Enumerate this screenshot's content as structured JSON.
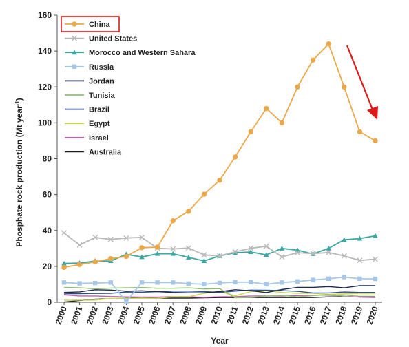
{
  "chart_data": {
    "type": "line",
    "title": "",
    "xlabel": "Year",
    "ylabel": "Phosphate rock production (Mt year",
    "ylabel_sup": "-1",
    "ylabel_close": ")",
    "ylim": [
      0,
      160
    ],
    "yticks": [
      0,
      20,
      40,
      60,
      80,
      100,
      120,
      140,
      160
    ],
    "x": [
      2000,
      2001,
      2002,
      2003,
      2004,
      2005,
      2006,
      2007,
      2008,
      2009,
      2010,
      2011,
      2012,
      2013,
      2014,
      2015,
      2016,
      2017,
      2018,
      2019,
      2020
    ],
    "grid": false,
    "legend_position": "top-left",
    "highlighted_series": "China",
    "annotation": "red downward arrow showing decline of China production after 2017",
    "series": [
      {
        "name": "China",
        "color": "#eaa84a",
        "marker": "circle",
        "values": [
          19.4,
          21,
          22.5,
          24.3,
          25.5,
          30.4,
          30.7,
          45.4,
          50.7,
          60.2,
          68,
          81,
          95,
          108,
          100,
          120,
          135,
          144,
          120,
          95,
          90
        ]
      },
      {
        "name": "United States",
        "color": "#b8b8b8",
        "marker": "x",
        "values": [
          38.6,
          31.9,
          36.1,
          35,
          35.8,
          36.1,
          30.1,
          29.7,
          30.2,
          26.4,
          25.8,
          28.1,
          30.1,
          31.2,
          25.3,
          27.6,
          27.1,
          27.7,
          25.8,
          23.3,
          24
        ]
      },
      {
        "name": "Morocco and Western Sahara",
        "color": "#3aa9a3",
        "marker": "triangle",
        "values": [
          21.6,
          21.8,
          23,
          23,
          26.7,
          25.2,
          27,
          27,
          25,
          23,
          25.8,
          27.6,
          28,
          26.4,
          30,
          29,
          26.9,
          30,
          34.8,
          35.5,
          37
        ]
      },
      {
        "name": "Russia",
        "color": "#a6c8e6",
        "marker": "square",
        "values": [
          11,
          10.5,
          10.7,
          11,
          0.5,
          11,
          11,
          11,
          10.4,
          10,
          10.8,
          11.2,
          11.2,
          10,
          11,
          11.6,
          12.4,
          13.1,
          14,
          13.1,
          13
        ]
      },
      {
        "name": "Jordan",
        "color": "#1e2a4a",
        "marker": "none",
        "values": [
          5.5,
          5.8,
          7,
          6.8,
          6.2,
          6.4,
          5.9,
          5.5,
          5.3,
          5.3,
          6,
          7,
          6.4,
          5.4,
          7.1,
          8.3,
          8.3,
          8.7,
          8,
          9.2,
          9.2
        ]
      },
      {
        "name": "Tunisia",
        "color": "#8ec06c",
        "marker": "none",
        "values": [
          8.3,
          8.1,
          7.5,
          7.9,
          8,
          8.2,
          7.8,
          7.8,
          8,
          7.4,
          7.6,
          2.5,
          2.6,
          3.4,
          3.8,
          3,
          3.7,
          4.2,
          3.3,
          4,
          4
        ]
      },
      {
        "name": "Brazil",
        "color": "#2f4f8f",
        "marker": "none",
        "values": [
          4.7,
          4.8,
          4.9,
          5,
          5.7,
          5.6,
          5.9,
          6.2,
          6.2,
          6,
          5.5,
          6.2,
          6.8,
          6.7,
          6.5,
          6.1,
          5.2,
          5.2,
          5.7,
          5.5,
          5.5
        ]
      },
      {
        "name": "Egypt",
        "color": "#c8d84a",
        "marker": "none",
        "values": [
          1.1,
          1.2,
          1.2,
          2.2,
          2.2,
          2.3,
          2.2,
          3,
          3,
          5,
          6,
          3.6,
          6,
          6.5,
          5.5,
          5,
          5,
          4.4,
          4.6,
          5,
          5
        ]
      },
      {
        "name": "Israel",
        "color": "#c060b0",
        "marker": "none",
        "values": [
          4.1,
          3.5,
          3.5,
          3.2,
          3,
          2.9,
          2.9,
          3.1,
          3.1,
          2.7,
          3.1,
          3.1,
          3.5,
          3.5,
          3.4,
          3.7,
          3.9,
          3.9,
          3.4,
          2.8,
          2.6
        ]
      },
      {
        "name": "Australia",
        "color": "#202020",
        "marker": "none",
        "values": [
          0.1,
          1,
          1.7,
          2,
          2.3,
          2.5,
          2.3,
          2.3,
          2.3,
          2.5,
          2.6,
          2.6,
          2.6,
          2.6,
          2.6,
          2.6,
          2.6,
          3,
          3,
          3,
          3
        ]
      }
    ]
  }
}
